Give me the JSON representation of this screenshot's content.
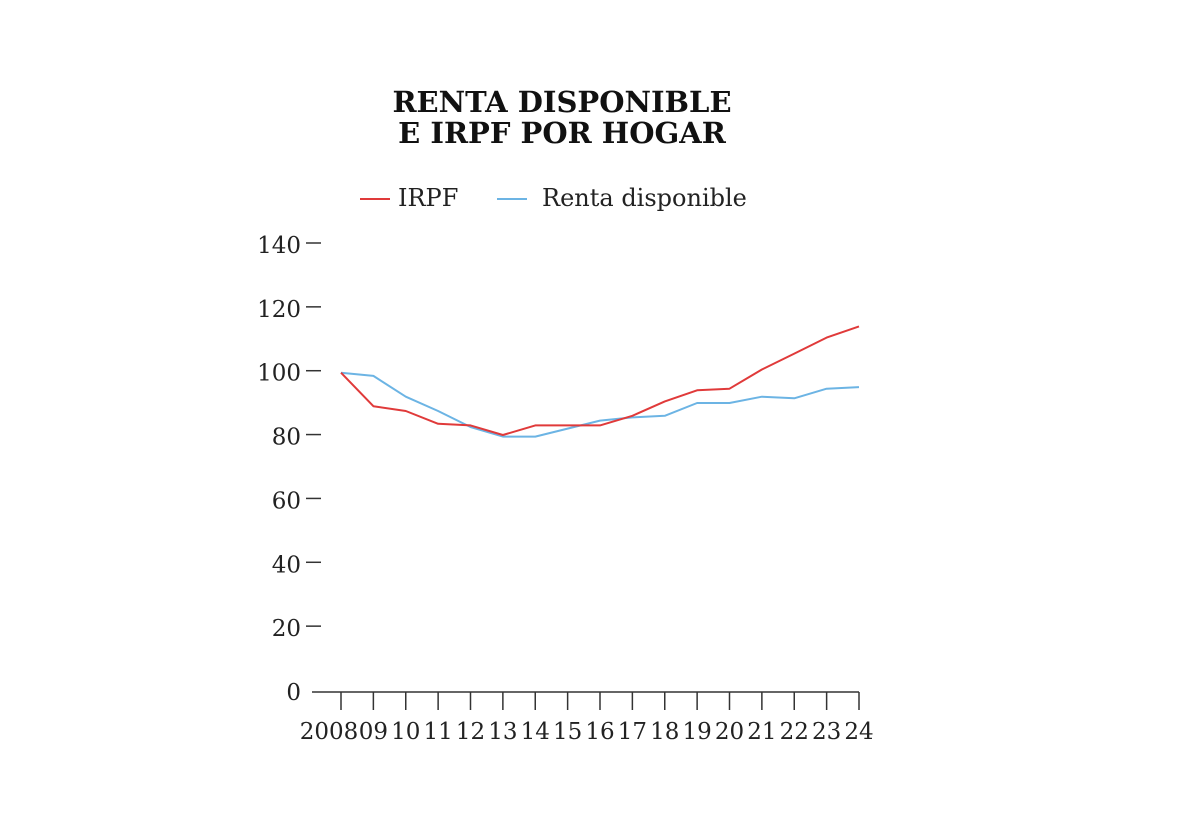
{
  "chart_data": {
    "type": "line",
    "title_lines": [
      "RENTA DISPONIBLE",
      "E IRPF POR HOGAR"
    ],
    "xlabel": "",
    "ylabel": "",
    "categories": [
      "2008",
      "09",
      "10",
      "11",
      "12",
      "13",
      "14",
      "15",
      "16",
      "17",
      "18",
      "19",
      "20",
      "21",
      "22",
      "23",
      "24"
    ],
    "ylim": [
      0,
      140
    ],
    "yticks": [
      0,
      20,
      40,
      60,
      80,
      100,
      120,
      140
    ],
    "grid": false,
    "legend_position": "top",
    "series": [
      {
        "name": "IRPF",
        "color": "#e03a3a",
        "values": [
          100,
          89.5,
          88,
          84,
          83.5,
          80.5,
          83.5,
          83.5,
          83.5,
          86.5,
          91,
          94.5,
          95,
          101,
          106,
          111,
          114.5
        ]
      },
      {
        "name": "Renta disponible",
        "color": "#6cb4e4",
        "values": [
          100,
          99,
          92.5,
          88,
          83,
          80,
          80,
          82.5,
          85,
          86,
          86.5,
          90.5,
          90.5,
          92.5,
          92,
          95,
          95.5
        ]
      }
    ]
  }
}
